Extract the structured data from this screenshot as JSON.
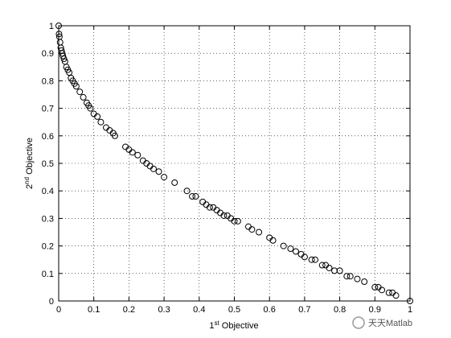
{
  "chart_data": {
    "type": "scatter",
    "x": [
      0,
      0.001,
      0.002,
      0.004,
      0.006,
      0.008,
      0.01,
      0.012,
      0.015,
      0.018,
      0.022,
      0.026,
      0.03,
      0.035,
      0.04,
      0.045,
      0.05,
      0.06,
      0.07,
      0.08,
      0.085,
      0.09,
      0.1,
      0.11,
      0.12,
      0.135,
      0.145,
      0.155,
      0.16,
      0.19,
      0.2,
      0.21,
      0.225,
      0.24,
      0.25,
      0.26,
      0.27,
      0.285,
      0.3,
      0.33,
      0.365,
      0.38,
      0.39,
      0.41,
      0.42,
      0.43,
      0.44,
      0.45,
      0.46,
      0.47,
      0.48,
      0.49,
      0.5,
      0.51,
      0.54,
      0.55,
      0.57,
      0.6,
      0.61,
      0.64,
      0.66,
      0.675,
      0.69,
      0.7,
      0.72,
      0.73,
      0.75,
      0.76,
      0.77,
      0.785,
      0.8,
      0.82,
      0.83,
      0.85,
      0.87,
      0.9,
      0.91,
      0.92,
      0.94,
      0.95,
      0.96,
      1
    ],
    "values": [
      1,
      0.97,
      0.96,
      0.94,
      0.92,
      0.91,
      0.9,
      0.89,
      0.88,
      0.87,
      0.85,
      0.84,
      0.83,
      0.81,
      0.8,
      0.79,
      0.78,
      0.76,
      0.74,
      0.72,
      0.71,
      0.7,
      0.68,
      0.67,
      0.65,
      0.63,
      0.62,
      0.61,
      0.6,
      0.56,
      0.55,
      0.54,
      0.53,
      0.51,
      0.5,
      0.49,
      0.48,
      0.47,
      0.45,
      0.43,
      0.4,
      0.38,
      0.38,
      0.36,
      0.35,
      0.34,
      0.34,
      0.33,
      0.32,
      0.31,
      0.31,
      0.3,
      0.29,
      0.29,
      0.27,
      0.26,
      0.25,
      0.23,
      0.22,
      0.2,
      0.19,
      0.18,
      0.17,
      0.16,
      0.15,
      0.15,
      0.13,
      0.13,
      0.12,
      0.11,
      0.11,
      0.09,
      0.09,
      0.08,
      0.07,
      0.05,
      0.05,
      0.04,
      0.03,
      0.03,
      0.02,
      0
    ],
    "color": "#000000",
    "xlim": [
      0,
      1
    ],
    "ylim": [
      0,
      1
    ],
    "xticks": [
      0,
      0.1,
      0.2,
      0.3,
      0.4,
      0.5,
      0.6,
      0.7,
      0.8,
      0.9,
      1
    ],
    "yticks": [
      0,
      0.1,
      0.2,
      0.3,
      0.4,
      0.5,
      0.6,
      0.7,
      0.8,
      0.9,
      1
    ],
    "grid": true,
    "xlabel": {
      "number": "1",
      "sup": "st",
      "text": " Objective"
    },
    "ylabel": {
      "number": "2",
      "sup": "nd",
      "text": " Objective"
    }
  },
  "watermark": "天天Matlab"
}
